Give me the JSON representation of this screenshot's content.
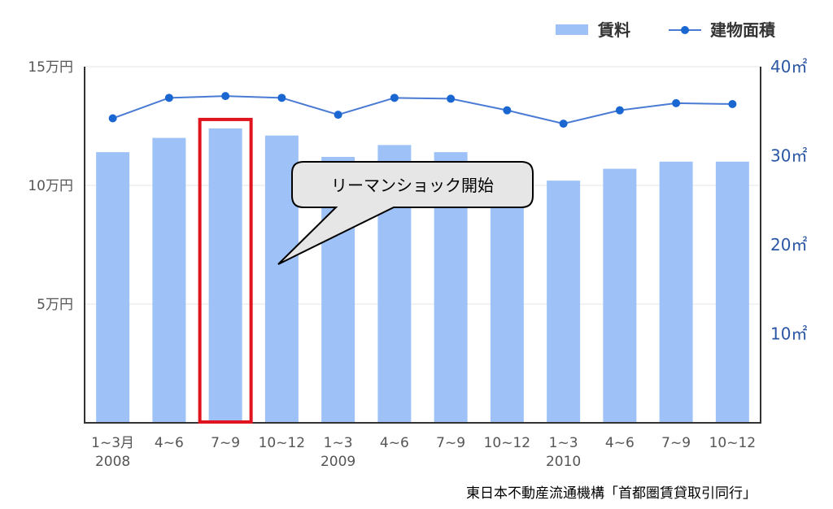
{
  "chart_data": {
    "type": "bar",
    "categories": [
      "1~3月",
      "4~6",
      "7~9",
      "10~12",
      "1~3",
      "4~6",
      "7~9",
      "10~12",
      "1~3",
      "4~6",
      "7~9",
      "10~12"
    ],
    "years": [
      {
        "label": "2008",
        "index": 0
      },
      {
        "label": "2009",
        "index": 4
      },
      {
        "label": "2010",
        "index": 8
      }
    ],
    "series": [
      {
        "name": "賃料",
        "type": "bar",
        "axis": "left",
        "color": "#9ec2f7",
        "values": [
          114000,
          120000,
          124000,
          121000,
          112000,
          117000,
          114000,
          109000,
          102000,
          107000,
          110000,
          110000
        ]
      },
      {
        "name": "建物面積",
        "type": "line",
        "axis": "right",
        "color": "#1a67d2",
        "line_color": "#4a7bd4",
        "values": [
          34.2,
          36.5,
          36.7,
          36.5,
          34.6,
          36.5,
          36.4,
          35.1,
          33.6,
          35.1,
          35.9,
          35.8
        ]
      }
    ],
    "left_axis": {
      "ticks": [
        "5万円",
        "10万円",
        "15万円"
      ],
      "tick_values": [
        50000,
        100000,
        150000
      ],
      "ylim": [
        0,
        150000
      ]
    },
    "right_axis": {
      "ticks": [
        "10㎡",
        "20㎡",
        "30㎡",
        "40㎡"
      ],
      "tick_values": [
        10,
        20,
        30,
        40
      ],
      "ylim": [
        0,
        40
      ]
    },
    "grid": true,
    "legend_position": "top-right",
    "highlight_index": 2,
    "highlight_color": "#e0141e",
    "annotation": {
      "text": "リーマンショック開始",
      "target_index": 2
    }
  },
  "source_note": "東日本不動産流通機構「首都圏賃貸取引同行」"
}
